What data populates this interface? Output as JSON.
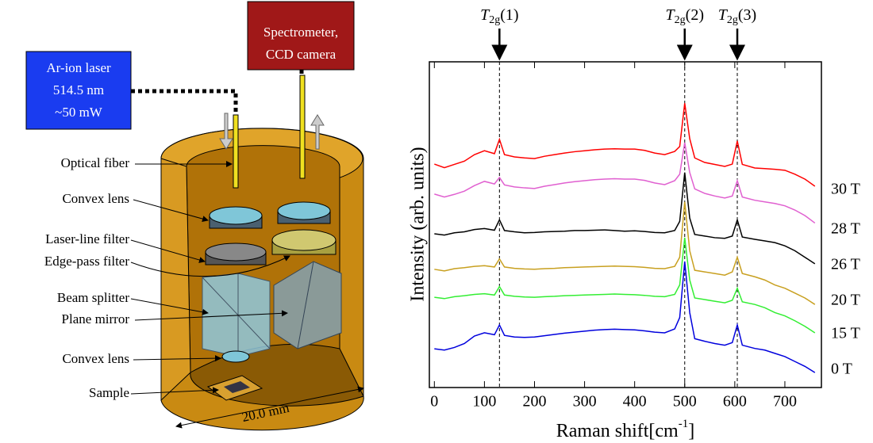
{
  "diagram": {
    "laser": [
      "Ar-ion laser",
      "514.5 nm",
      "~50 mW"
    ],
    "spectrometer": [
      "Spectrometer,",
      "CCD camera"
    ],
    "parts": [
      "Optical fiber",
      "Convex lens",
      "Laser-line filter",
      "Edge-pass filter",
      "Beam splitter",
      "Plane mirror",
      "Convex lens",
      "Sample"
    ],
    "dimension": "20.0 mm"
  },
  "chart_data": {
    "type": "line",
    "xlabel": [
      "Raman shift[cm",
      "-1",
      "]"
    ],
    "ylabel": "Intensity (arb. units)",
    "xlim": [
      -10,
      773
    ],
    "ylim": [
      0,
      100
    ],
    "xticks": [
      0,
      100,
      200,
      300,
      400,
      500,
      600,
      700
    ],
    "annotations": [
      {
        "x": 130,
        "label": [
          "T",
          "2g",
          "(1)"
        ]
      },
      {
        "x": 500,
        "label": [
          "T",
          "2g",
          "(2)"
        ]
      },
      {
        "x": 605,
        "label": [
          "T",
          "2g",
          "(3)"
        ]
      }
    ],
    "x": [
      0,
      20,
      40,
      60,
      80,
      100,
      120,
      130,
      140,
      160,
      180,
      200,
      220,
      240,
      260,
      280,
      300,
      320,
      340,
      360,
      380,
      400,
      420,
      440,
      460,
      480,
      490,
      500,
      510,
      520,
      540,
      560,
      580,
      595,
      605,
      615,
      640,
      660,
      680,
      700,
      720,
      740,
      760
    ],
    "series": [
      {
        "name": "30 T",
        "color": "#ff0000",
        "values": [
          68.6,
          67.5,
          68.5,
          69.5,
          71.5,
          72.7,
          71.8,
          76.2,
          71.5,
          70.8,
          70.5,
          70.3,
          71,
          71.5,
          72,
          72.4,
          72.7,
          73,
          73.2,
          73.3,
          73.2,
          73.2,
          72.8,
          72,
          71.5,
          72.5,
          74,
          87.3,
          76.4,
          70.5,
          69.1,
          68.5,
          67.9,
          68.6,
          75.7,
          68.5,
          67.4,
          67.2,
          67,
          66.7,
          65.5,
          64,
          61.8
        ]
      },
      {
        "name": "28 T",
        "color": "#e060d0",
        "values": [
          59.4,
          58.5,
          59.3,
          60.3,
          62,
          63.3,
          62.5,
          64.5,
          62.2,
          61.6,
          61.3,
          61.1,
          61.8,
          62.3,
          62.8,
          63.2,
          63.5,
          63.8,
          64,
          64.1,
          64,
          64,
          63.6,
          62.8,
          62.3,
          63.5,
          65.5,
          75.2,
          66,
          61,
          59.6,
          58.8,
          58.2,
          58.8,
          63.5,
          58.5,
          57.5,
          57,
          56.5,
          55.8,
          54.5,
          52.8,
          50.5
        ]
      },
      {
        "name": "26 T",
        "color": "#000000",
        "values": [
          47.2,
          46.8,
          47.5,
          47.8,
          48.5,
          48.8,
          48.3,
          51.5,
          48.2,
          47.8,
          47.5,
          47.6,
          47.8,
          47.9,
          48,
          48.2,
          48.2,
          48.3,
          48.4,
          48.2,
          48,
          48.1,
          47.9,
          47.6,
          47.5,
          48.2,
          51,
          66,
          52,
          47,
          46.5,
          46,
          45.8,
          46.5,
          51.5,
          46.2,
          45.5,
          45,
          44.5,
          43.5,
          42,
          40,
          38
        ]
      },
      {
        "name": "20 T",
        "color": "#c8a020",
        "values": [
          36.3,
          35.8,
          36.5,
          36.8,
          37.2,
          37.4,
          37,
          39.5,
          37,
          36.6,
          36.4,
          36.3,
          36.5,
          36.6,
          36.8,
          36.9,
          37,
          37.1,
          37.2,
          37.3,
          37.2,
          37.1,
          36.9,
          36.6,
          36.5,
          37.2,
          40,
          57,
          42,
          36,
          35.5,
          35,
          34.5,
          35.5,
          40,
          35,
          34,
          33,
          31.5,
          30.5,
          29,
          27.5,
          25.5
        ]
      },
      {
        "name": "15 T",
        "color": "#33ee33",
        "values": [
          27.7,
          27.3,
          27.9,
          28.2,
          28.6,
          28.8,
          28.4,
          31,
          28.4,
          28,
          27.8,
          27.7,
          27.9,
          28,
          28.2,
          28.3,
          28.4,
          28.5,
          28.6,
          28.7,
          28.6,
          28.5,
          28.3,
          28,
          27.9,
          28.6,
          31.5,
          46,
          33,
          27.5,
          27,
          26.5,
          26,
          26.8,
          30.5,
          26.3,
          25.5,
          24.5,
          23,
          22,
          20.5,
          18.8,
          16.8
        ]
      },
      {
        "name": "0 T",
        "color": "#0000dd",
        "values": [
          11.9,
          11.5,
          12.3,
          13.5,
          15.8,
          16.8,
          16.2,
          19.2,
          16,
          15.5,
          15.4,
          15.5,
          15.9,
          16.3,
          16.7,
          17,
          17.3,
          17.6,
          17.8,
          17.9,
          17.8,
          17.7,
          17.4,
          17,
          16.8,
          18,
          21.5,
          38.7,
          23,
          15,
          14.2,
          13.5,
          13,
          13.8,
          19.2,
          13,
          12,
          11.5,
          10.5,
          9.5,
          8,
          6.5,
          4.6
        ]
      }
    ]
  }
}
